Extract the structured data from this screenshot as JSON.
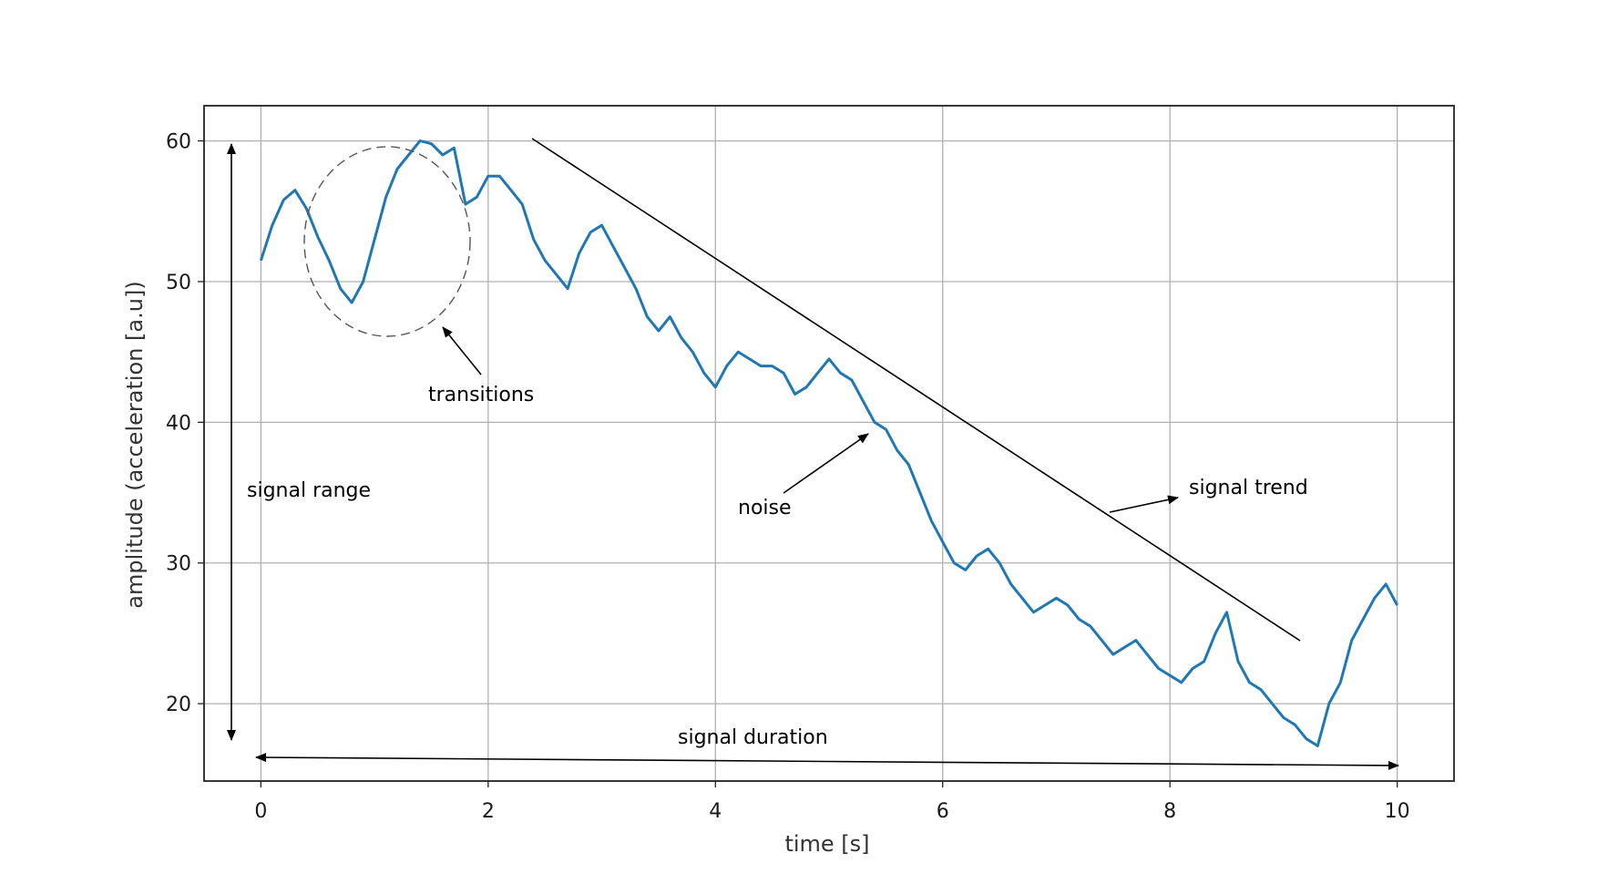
{
  "chart_data": {
    "type": "line",
    "title": "",
    "xlabel": "time [s]",
    "ylabel": "amplitude (acceleration [a.u])",
    "xlim": [
      -0.5,
      10.5
    ],
    "ylim": [
      14.5,
      62.5
    ],
    "xticks": [
      0,
      2,
      4,
      6,
      8,
      10
    ],
    "yticks": [
      20,
      30,
      40,
      50,
      60
    ],
    "grid": true,
    "series_color": "#1f77b4",
    "series": [
      {
        "x": [
          0.0,
          0.1,
          0.2,
          0.3,
          0.4,
          0.5,
          0.6,
          0.7,
          0.8,
          0.9,
          1.0,
          1.1,
          1.2,
          1.3,
          1.4,
          1.5,
          1.6,
          1.7,
          1.8,
          1.9,
          2.0,
          2.1,
          2.2,
          2.3,
          2.4,
          2.5,
          2.6,
          2.7,
          2.8,
          2.9,
          3.0,
          3.1,
          3.2,
          3.3,
          3.4,
          3.5,
          3.6,
          3.7,
          3.8,
          3.9,
          4.0,
          4.1,
          4.2,
          4.3,
          4.4,
          4.5,
          4.6,
          4.7,
          4.8,
          4.9,
          5.0,
          5.1,
          5.2,
          5.3,
          5.4,
          5.5,
          5.6,
          5.7,
          5.8,
          5.9,
          6.0,
          6.1,
          6.2,
          6.3,
          6.4,
          6.5,
          6.6,
          6.7,
          6.8,
          6.9,
          7.0,
          7.1,
          7.2,
          7.3,
          7.4,
          7.5,
          7.6,
          7.7,
          7.8,
          7.9,
          8.0,
          8.1,
          8.2,
          8.3,
          8.4,
          8.5,
          8.6,
          8.7,
          8.8,
          8.9,
          9.0,
          9.1,
          9.2,
          9.3,
          9.4,
          9.5,
          9.6,
          9.7,
          9.8,
          9.9,
          10.0
        ],
        "y": [
          51.5,
          54.0,
          55.8,
          56.5,
          55.2,
          53.2,
          51.5,
          49.5,
          48.5,
          50.0,
          53.0,
          56.0,
          58.0,
          59.0,
          60.0,
          59.8,
          59.0,
          59.5,
          55.5,
          56.0,
          57.5,
          57.5,
          56.5,
          55.5,
          53.0,
          51.5,
          50.5,
          49.5,
          52.0,
          53.5,
          54.0,
          52.5,
          51.0,
          49.5,
          47.5,
          46.5,
          47.5,
          46.0,
          45.0,
          43.5,
          42.5,
          44.0,
          45.0,
          44.5,
          44.0,
          44.0,
          43.5,
          42.0,
          42.5,
          43.5,
          44.5,
          43.5,
          43.0,
          41.5,
          40.0,
          39.5,
          38.0,
          37.0,
          35.0,
          33.0,
          31.5,
          30.0,
          29.5,
          30.5,
          31.0,
          30.0,
          28.5,
          27.5,
          26.5,
          27.0,
          27.5,
          27.0,
          26.0,
          25.5,
          24.5,
          23.5,
          24.0,
          24.5,
          23.5,
          22.5,
          22.0,
          21.5,
          22.5,
          23.0,
          25.0,
          26.5,
          23.0,
          21.5,
          21.0,
          20.0,
          19.0,
          18.5,
          17.5,
          17.0,
          20.0,
          21.5,
          24.5,
          26.0,
          27.5,
          28.5,
          27.0
        ]
      }
    ],
    "annotations": [
      {
        "label": "transitions"
      },
      {
        "label": "noise"
      },
      {
        "label": "signal trend"
      },
      {
        "label": "signal range"
      },
      {
        "label": "signal duration"
      }
    ]
  }
}
